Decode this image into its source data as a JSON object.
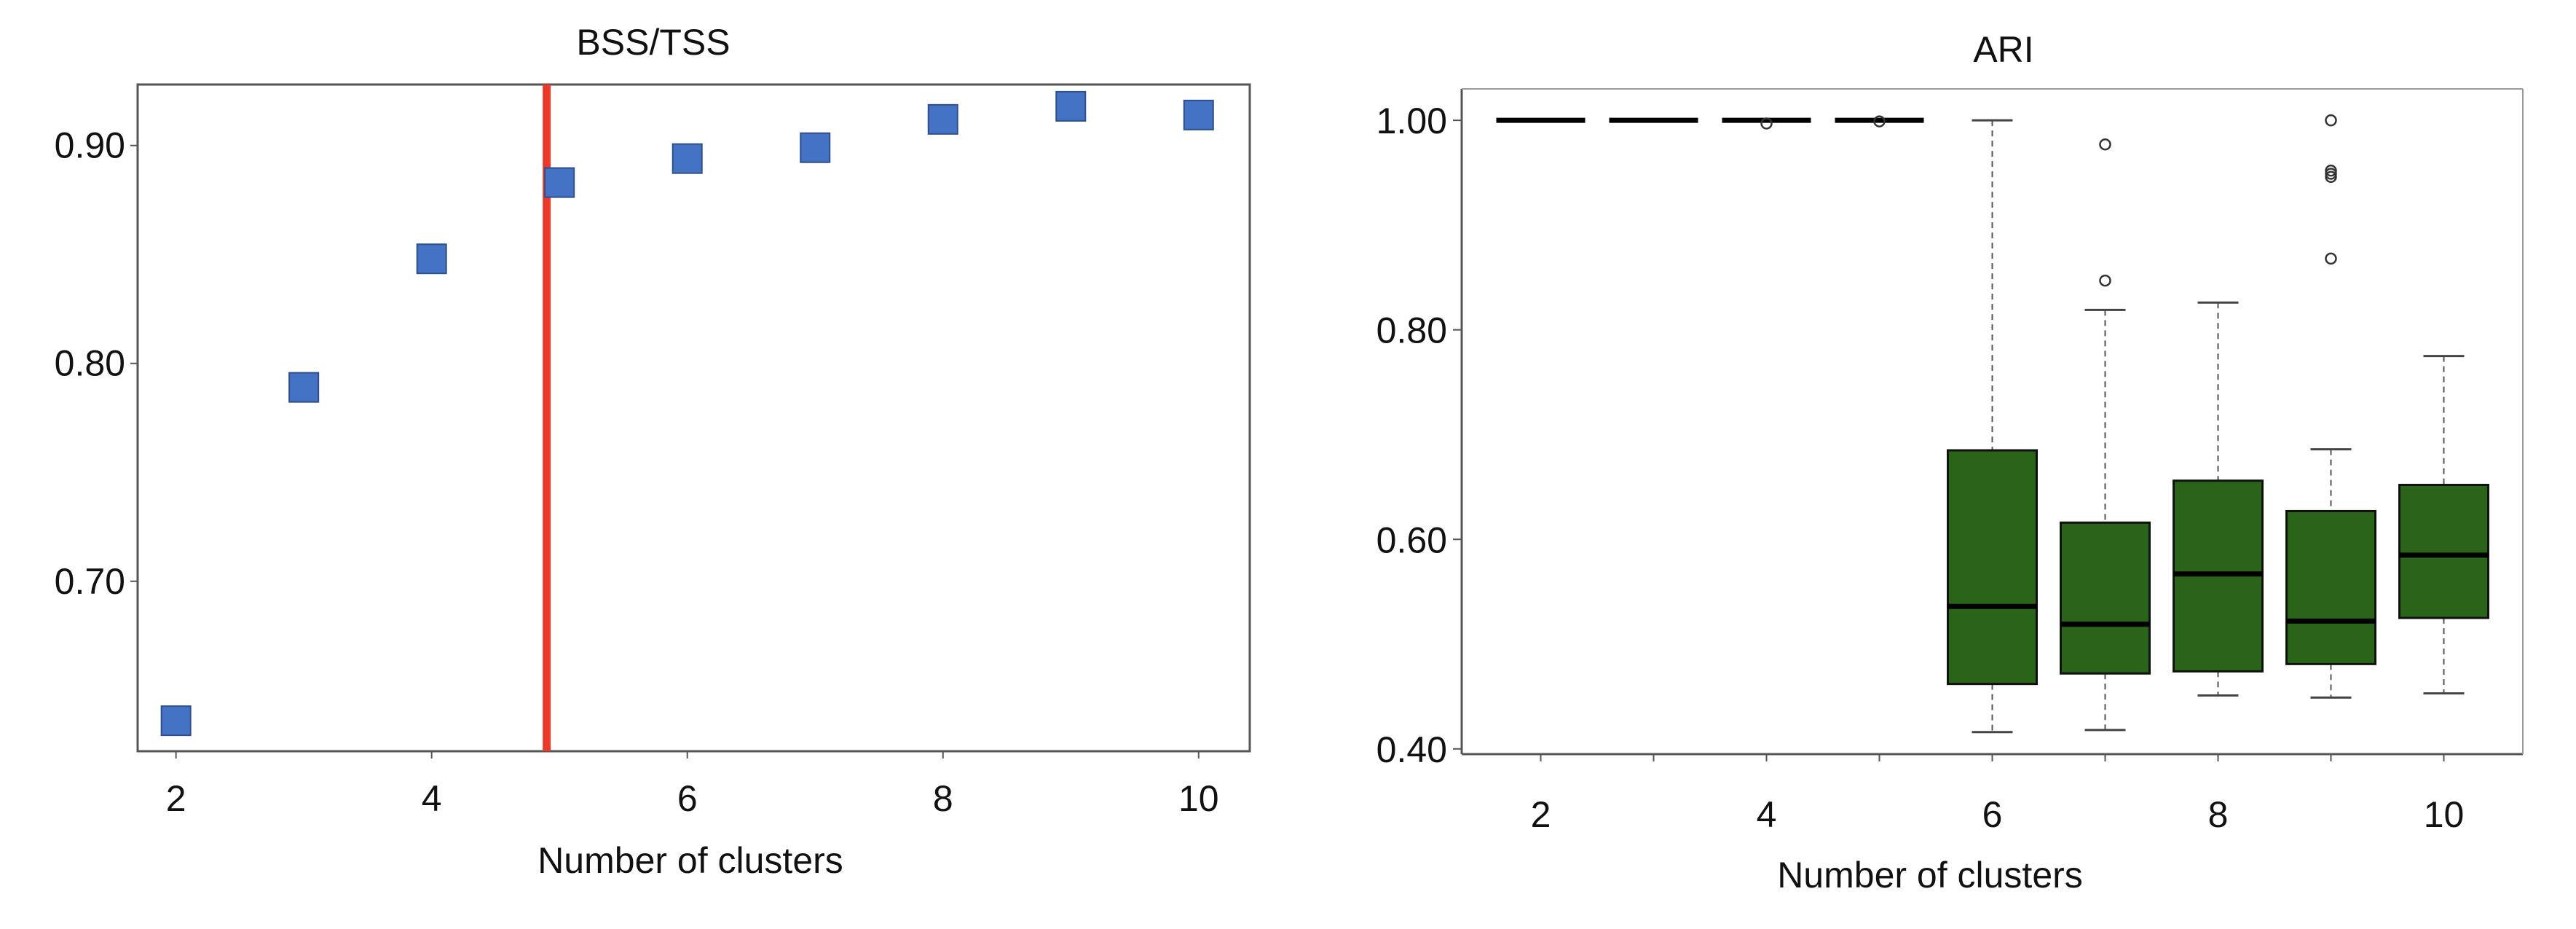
{
  "chart_data": [
    {
      "type": "scatter",
      "title": "BSS/TSS",
      "xlabel": "Number of clusters",
      "ylabel": "",
      "x_ticks": [
        2,
        4,
        6,
        8,
        10
      ],
      "y_ticks": [
        0.7,
        0.8,
        0.9
      ],
      "y_tick_labels": [
        "0.70",
        "0.80",
        "0.90"
      ],
      "xlim": [
        1.7,
        10.4
      ],
      "ylim": [
        0.622,
        0.928
      ],
      "x": [
        2,
        3,
        4,
        5,
        6,
        7,
        8,
        9,
        10
      ],
      "y": [
        0.636,
        0.789,
        0.848,
        0.883,
        0.894,
        0.899,
        0.912,
        0.918,
        0.914
      ],
      "marker_color": "#4472c4",
      "reference_line": {
        "x": 4.9,
        "color": "#e8392a"
      },
      "grid": false
    },
    {
      "type": "boxplot",
      "title": "ARI",
      "xlabel": "Number of clusters",
      "ylabel": "",
      "x_ticks": [
        2,
        4,
        6,
        8,
        10
      ],
      "y_ticks": [
        0.4,
        0.6,
        0.8,
        1.0
      ],
      "y_tick_labels": [
        "0.40",
        "0.60",
        "0.80",
        "1.00"
      ],
      "xlim": [
        1.3,
        10.7
      ],
      "ylim": [
        0.395,
        1.03
      ],
      "box_color": "#2a6418",
      "grid": false,
      "boxes": [
        {
          "x": 2,
          "q1": 1.0,
          "median": 1.0,
          "q3": 1.0,
          "whisker_low": 1.0,
          "whisker_high": 1.0,
          "outliers": []
        },
        {
          "x": 3,
          "q1": 1.0,
          "median": 1.0,
          "q3": 1.0,
          "whisker_low": 1.0,
          "whisker_high": 1.0,
          "outliers": []
        },
        {
          "x": 4,
          "q1": 1.0,
          "median": 1.0,
          "q3": 1.0,
          "whisker_low": 1.0,
          "whisker_high": 1.0,
          "outliers": [
            0.997
          ]
        },
        {
          "x": 5,
          "q1": 1.0,
          "median": 1.0,
          "q3": 1.0,
          "whisker_low": 1.0,
          "whisker_high": 1.0,
          "outliers": [
            0.999
          ]
        },
        {
          "x": 6,
          "q1": 0.462,
          "median": 0.536,
          "q3": 0.685,
          "whisker_low": 0.416,
          "whisker_high": 1.0,
          "outliers": []
        },
        {
          "x": 7,
          "q1": 0.472,
          "median": 0.519,
          "q3": 0.616,
          "whisker_low": 0.418,
          "whisker_high": 0.819,
          "outliers": [
            0.847,
            0.977
          ]
        },
        {
          "x": 8,
          "q1": 0.474,
          "median": 0.567,
          "q3": 0.656,
          "whisker_low": 0.451,
          "whisker_high": 0.826,
          "outliers": []
        },
        {
          "x": 9,
          "q1": 0.481,
          "median": 0.522,
          "q3": 0.627,
          "whisker_low": 0.449,
          "whisker_high": 0.686,
          "outliers": [
            0.868,
            0.946,
            0.949,
            0.952,
            1.0
          ]
        },
        {
          "x": 10,
          "q1": 0.525,
          "median": 0.585,
          "q3": 0.652,
          "whisker_low": 0.453,
          "whisker_high": 0.775,
          "outliers": []
        }
      ]
    }
  ]
}
